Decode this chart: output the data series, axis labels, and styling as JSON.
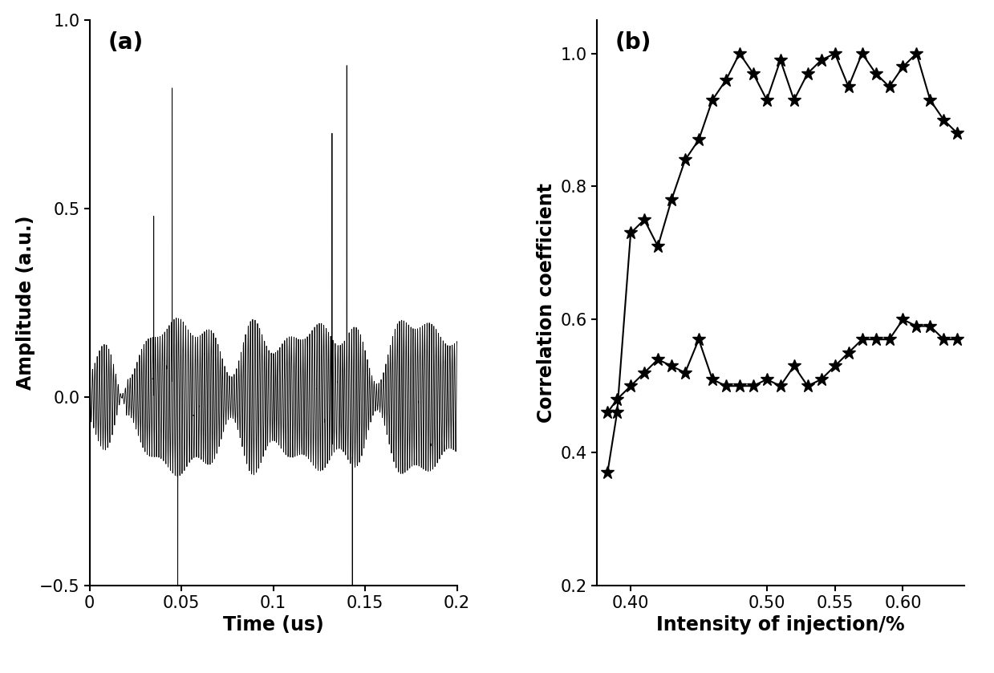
{
  "panel_a": {
    "label": "(a)",
    "xlabel": "Time (us)",
    "ylabel": "Amplitude (a.u.)",
    "xlim": [
      0,
      0.2
    ],
    "ylim": [
      -0.5,
      1.0
    ],
    "xticks": [
      0,
      0.05,
      0.1,
      0.15,
      0.2
    ],
    "yticks": [
      -0.5,
      0,
      0.5,
      1
    ]
  },
  "panel_b": {
    "label": "(b)",
    "xlabel": "Intensity of injection/%",
    "ylabel": "Correlation coefficient",
    "xlim": [
      0.375,
      0.645
    ],
    "ylim": [
      0.2,
      1.05
    ],
    "xticks": [
      0.4,
      0.5,
      0.55,
      0.6
    ],
    "yticks": [
      0.2,
      0.4,
      0.6,
      0.8,
      1.0
    ],
    "upper_x": [
      0.383,
      0.39,
      0.4,
      0.41,
      0.42,
      0.43,
      0.44,
      0.45,
      0.46,
      0.47,
      0.48,
      0.49,
      0.5,
      0.51,
      0.52,
      0.53,
      0.54,
      0.55,
      0.56,
      0.57,
      0.58,
      0.59,
      0.6,
      0.61,
      0.62,
      0.63,
      0.64
    ],
    "upper_y": [
      0.37,
      0.46,
      0.73,
      0.75,
      0.71,
      0.78,
      0.84,
      0.87,
      0.93,
      0.96,
      1.0,
      0.97,
      0.93,
      0.99,
      0.93,
      0.97,
      0.99,
      1.0,
      0.95,
      1.0,
      0.97,
      0.95,
      0.98,
      1.0,
      0.93,
      0.9,
      0.88
    ],
    "lower_x": [
      0.383,
      0.39,
      0.4,
      0.41,
      0.42,
      0.43,
      0.44,
      0.45,
      0.46,
      0.47,
      0.48,
      0.49,
      0.5,
      0.51,
      0.52,
      0.53,
      0.54,
      0.55,
      0.56,
      0.57,
      0.58,
      0.59,
      0.6,
      0.61,
      0.62,
      0.63,
      0.64
    ],
    "lower_y": [
      0.46,
      0.48,
      0.5,
      0.52,
      0.54,
      0.53,
      0.52,
      0.57,
      0.51,
      0.5,
      0.5,
      0.5,
      0.51,
      0.5,
      0.53,
      0.5,
      0.51,
      0.53,
      0.55,
      0.57,
      0.57,
      0.57,
      0.6,
      0.59,
      0.59,
      0.57,
      0.57
    ]
  },
  "bg_color": "#ffffff",
  "line_color": "#000000",
  "label_fontsize": 17,
  "tick_fontsize": 15,
  "panel_label_fontsize": 20
}
